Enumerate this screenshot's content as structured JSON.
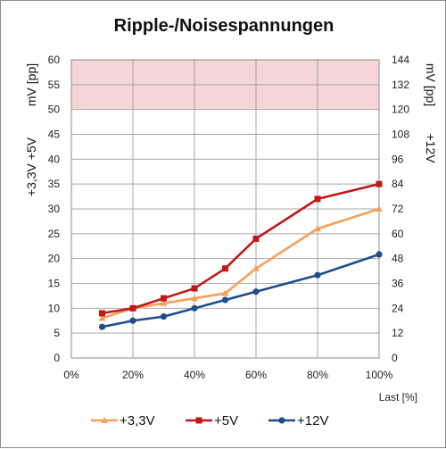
{
  "chart_data": {
    "type": "line",
    "title": "Ripple-/Noisespannungen",
    "xlabel": "Last [%]",
    "ylabel_left_top": "mV [pp]",
    "ylabel_left_bottom": "+3,3V +5V",
    "ylabel_right_top": "mV [pp]",
    "ylabel_right_bottom": "+12V",
    "xlim": [
      0,
      100
    ],
    "ylim": [
      0,
      60
    ],
    "ylim_right": [
      0,
      144
    ],
    "x_ticks": [
      "0%",
      "20%",
      "40%",
      "60%",
      "80%",
      "100%"
    ],
    "y_ticks": [
      "0",
      "5",
      "10",
      "15",
      "20",
      "25",
      "30",
      "35",
      "40",
      "45",
      "50",
      "55",
      "60"
    ],
    "y_ticks_right": [
      "0",
      "12",
      "24",
      "36",
      "48",
      "60",
      "72",
      "84",
      "96",
      "108",
      "120",
      "132",
      "144"
    ],
    "limit_band": {
      "from": 50,
      "to": 60,
      "color": "#f5d5d5"
    },
    "grid": true,
    "legend_position": "bottom",
    "series": [
      {
        "name": "+3,3V",
        "color": "#f5a05a",
        "marker": "triangle",
        "axis": "left",
        "x": [
          10,
          20,
          30,
          40,
          50,
          60,
          80,
          100
        ],
        "values": [
          8,
          10,
          11,
          12,
          13,
          18,
          26,
          30
        ]
      },
      {
        "name": "+5V",
        "color": "#c01818",
        "marker": "square",
        "axis": "left",
        "x": [
          10,
          20,
          30,
          40,
          50,
          60,
          80,
          100
        ],
        "values": [
          9,
          10,
          12,
          14,
          18,
          24,
          32,
          35
        ]
      },
      {
        "name": "+12V",
        "color": "#1f4e8c",
        "marker": "circle",
        "axis": "right",
        "x": [
          10,
          20,
          30,
          40,
          50,
          60,
          80,
          100
        ],
        "values": [
          15,
          18,
          20,
          24,
          28,
          32,
          40,
          50
        ]
      }
    ]
  }
}
